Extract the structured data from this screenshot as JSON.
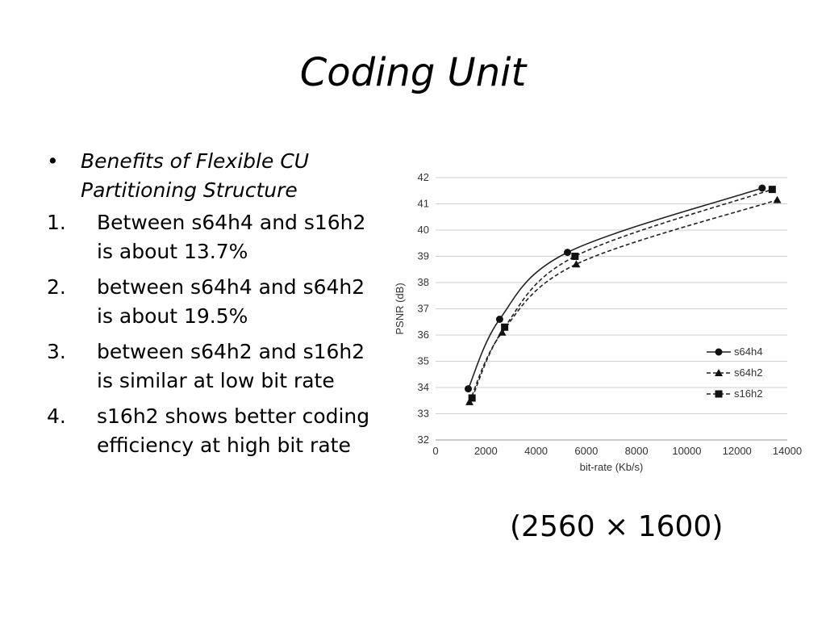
{
  "slide": {
    "title": "Coding Unit",
    "bullet": "Benefits of Flexible CU Partitioning Structure",
    "bullet_mark": "•",
    "items": [
      {
        "num": "1.",
        "text": "Between s64h4 and s16h2 is about 13.7%"
      },
      {
        "num": "2.",
        "text": "between s64h4 and s64h2 is about 19.5%"
      },
      {
        "num": "3.",
        "text": "between s64h2 and s16h2 is similar at low bit rate"
      },
      {
        "num": "4.",
        "text": "s16h2 shows better coding efficiency at high bit rate"
      }
    ],
    "caption": "(2560 × 1600)"
  },
  "chart_data": {
    "type": "line",
    "xlabel": "bit-rate (Kb/s)",
    "ylabel": "PSNR (dB)",
    "xlim": [
      0,
      14000
    ],
    "ylim": [
      32,
      42
    ],
    "xticks": [
      0,
      2000,
      4000,
      6000,
      8000,
      10000,
      12000,
      14000
    ],
    "yticks": [
      32,
      33,
      34,
      35,
      36,
      37,
      38,
      39,
      40,
      41,
      42
    ],
    "grid": "horizontal",
    "legend": "bottom-right",
    "series": [
      {
        "name": "s64h4",
        "marker": "circle",
        "dash": "solid",
        "points": [
          [
            1300,
            33.95
          ],
          [
            2550,
            36.6
          ],
          [
            5250,
            39.15
          ],
          [
            13000,
            41.6
          ]
        ]
      },
      {
        "name": "s64h2",
        "marker": "triangle",
        "dash": "dashed",
        "points": [
          [
            1350,
            33.45
          ],
          [
            2650,
            36.1
          ],
          [
            5600,
            38.7
          ],
          [
            13600,
            41.15
          ]
        ]
      },
      {
        "name": "s16h2",
        "marker": "square",
        "dash": "dashed",
        "points": [
          [
            1450,
            33.6
          ],
          [
            2750,
            36.3
          ],
          [
            5550,
            39.0
          ],
          [
            13400,
            41.55
          ]
        ]
      }
    ]
  }
}
